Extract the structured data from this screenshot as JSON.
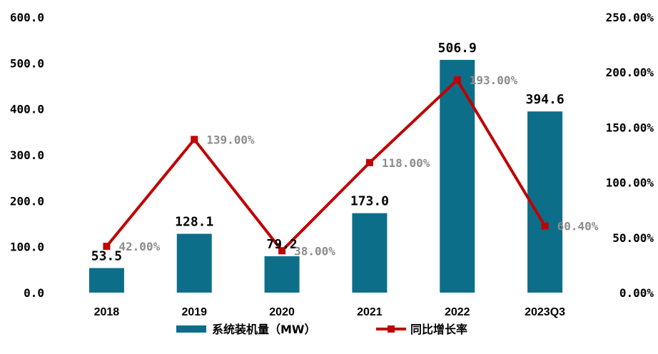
{
  "chart_data": {
    "type": "bar",
    "categories": [
      "2018",
      "2019",
      "2020",
      "2021",
      "2022",
      "2023Q3"
    ],
    "series": [
      {
        "name": "系统装机量（MW）",
        "kind": "bar",
        "axis": "left",
        "color": "#0d6e8a",
        "values": [
          53.5,
          128.1,
          79.2,
          173.0,
          506.9,
          394.6
        ],
        "value_labels": [
          "53.5",
          "128.1",
          "79.2",
          "173.0",
          "506.9",
          "394.6"
        ]
      },
      {
        "name": "同比增长率",
        "kind": "line",
        "axis": "right",
        "color": "#c00000",
        "values": [
          42.0,
          139.0,
          38.0,
          118.0,
          193.0,
          60.4
        ],
        "value_labels": [
          "42.00%",
          "139.00%",
          "38.00%",
          "118.00%",
          "193.00%",
          "60.40%"
        ]
      }
    ],
    "y_left": {
      "ylim": [
        0,
        600
      ],
      "ticks": [
        0,
        100,
        200,
        300,
        400,
        500,
        600
      ],
      "tick_labels": [
        "0.0",
        "100.0",
        "200.0",
        "300.0",
        "400.0",
        "500.0",
        "600.0"
      ]
    },
    "y_right": {
      "ylim": [
        0,
        250
      ],
      "ticks": [
        0,
        50,
        100,
        150,
        200,
        250
      ],
      "tick_labels": [
        "0.00%",
        "50.00%",
        "100.00%",
        "150.00%",
        "200.00%",
        "250.00%"
      ]
    },
    "grid": false,
    "legend_position": "bottom-center"
  }
}
